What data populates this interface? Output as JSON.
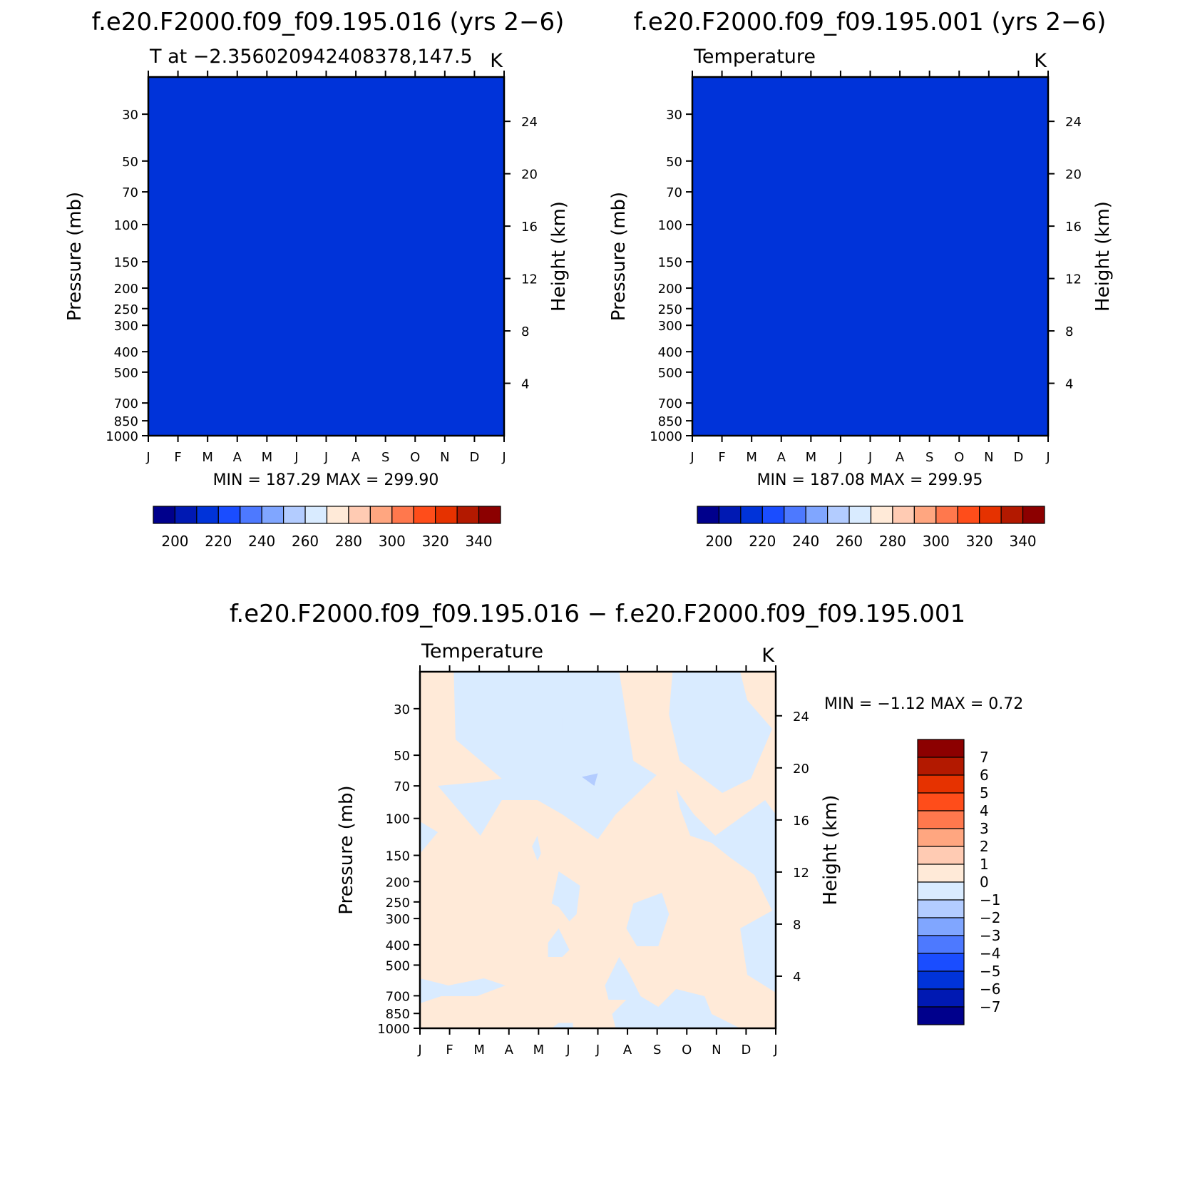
{
  "chart_data": [
    {
      "type": "heatmap",
      "title": "f.e20.F2000.f09_f09.195.016 (yrs 2−6)",
      "subtitle_left": "T at −2.356020942408378,147.5",
      "subtitle_right": "K",
      "xlabel": "",
      "ylabel": "Pressure (mb)",
      "ylabel_right": "Height (km)",
      "x_ticks": [
        "J",
        "F",
        "M",
        "A",
        "M",
        "J",
        "J",
        "A",
        "S",
        "O",
        "N",
        "D",
        "J"
      ],
      "y_ticks": [
        "30",
        "50",
        "70",
        "100",
        "150",
        "200",
        "250",
        "300",
        "400",
        "500",
        "700",
        "850",
        "1000"
      ],
      "y_ticks_right": [
        "24",
        "20",
        "16",
        "12",
        "8",
        "4"
      ],
      "ylim_mb": [
        1000,
        20
      ],
      "stats": "MIN = 187.29 MAX = 299.90",
      "min": 187.29,
      "max": 299.9,
      "colorbar": {
        "labels": [
          "200",
          "220",
          "240",
          "260",
          "280",
          "300",
          "320",
          "340"
        ],
        "colors": [
          "#00008c",
          "#0019b3",
          "#0033d9",
          "#1a4dff",
          "#4d79ff",
          "#80a6ff",
          "#b3ccff",
          "#d9ebff",
          "#ffead8",
          "#ffcbb3",
          "#ffa680",
          "#ff784d",
          "#ff4d1a",
          "#e63200",
          "#b31900",
          "#8c0000"
        ]
      }
    },
    {
      "type": "heatmap",
      "title": "f.e20.F2000.f09_f09.195.001 (yrs 2−6)",
      "subtitle_left": "Temperature",
      "subtitle_right": "K",
      "xlabel": "",
      "ylabel": "Pressure (mb)",
      "ylabel_right": "Height (km)",
      "x_ticks": [
        "J",
        "F",
        "M",
        "A",
        "M",
        "J",
        "J",
        "A",
        "S",
        "O",
        "N",
        "D",
        "J"
      ],
      "y_ticks": [
        "30",
        "50",
        "70",
        "100",
        "150",
        "200",
        "250",
        "300",
        "400",
        "500",
        "700",
        "850",
        "1000"
      ],
      "y_ticks_right": [
        "24",
        "20",
        "16",
        "12",
        "8",
        "4"
      ],
      "ylim_mb": [
        1000,
        20
      ],
      "stats": "MIN = 187.08 MAX = 299.95",
      "min": 187.08,
      "max": 299.95,
      "colorbar": {
        "labels": [
          "200",
          "220",
          "240",
          "260",
          "280",
          "300",
          "320",
          "340"
        ],
        "colors": [
          "#00008c",
          "#0019b3",
          "#0033d9",
          "#1a4dff",
          "#4d79ff",
          "#80a6ff",
          "#b3ccff",
          "#d9ebff",
          "#ffead8",
          "#ffcbb3",
          "#ffa680",
          "#ff784d",
          "#ff4d1a",
          "#e63200",
          "#b31900",
          "#8c0000"
        ]
      }
    },
    {
      "type": "heatmap",
      "title": "f.e20.F2000.f09_f09.195.016 − f.e20.F2000.f09_f09.195.001",
      "subtitle_left": "Temperature",
      "subtitle_right": "K",
      "xlabel": "",
      "ylabel": "Pressure (mb)",
      "ylabel_right": "Height (km)",
      "x_ticks": [
        "J",
        "F",
        "M",
        "A",
        "M",
        "J",
        "J",
        "A",
        "S",
        "O",
        "N",
        "D",
        "J"
      ],
      "y_ticks": [
        "30",
        "50",
        "70",
        "100",
        "150",
        "200",
        "250",
        "300",
        "400",
        "500",
        "700",
        "850",
        "1000"
      ],
      "y_ticks_right": [
        "24",
        "20",
        "16",
        "12",
        "8",
        "4"
      ],
      "ylim_mb": [
        1000,
        20
      ],
      "stats": "MIN =   −1.12 MAX =    0.72",
      "min": -1.12,
      "max": 0.72,
      "colorbar": {
        "labels": [
          "7",
          "6",
          "5",
          "4",
          "3",
          "2",
          "1",
          "0",
          "−1",
          "−2",
          "−3",
          "−4",
          "−5",
          "−6",
          "−7"
        ],
        "colors": [
          "#8c0000",
          "#b31900",
          "#e63200",
          "#ff4d1a",
          "#ff784d",
          "#ffa680",
          "#ffcbb3",
          "#ffead8",
          "#d9ebff",
          "#b3ccff",
          "#80a6ff",
          "#4d79ff",
          "#1a4dff",
          "#0033d9",
          "#0019b3",
          "#00008c"
        ]
      }
    }
  ]
}
